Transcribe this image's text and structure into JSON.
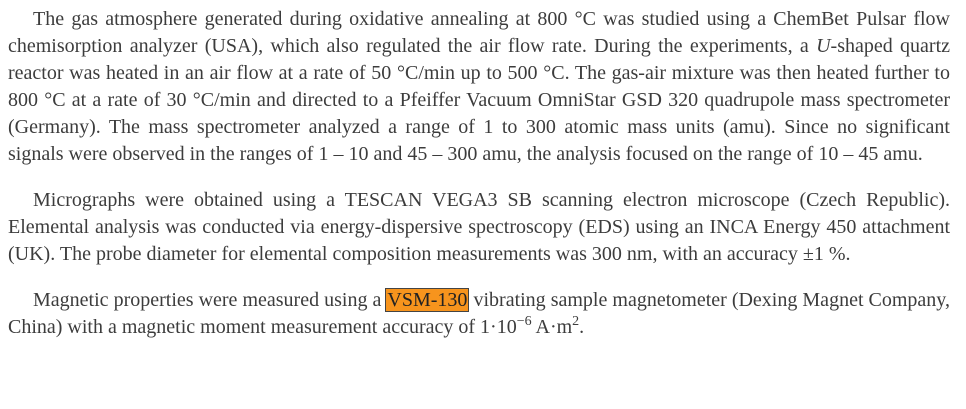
{
  "paragraphs": [
    [
      "The gas atmosphere generated during oxidative annealing at 800 °C was studied using a ChemBet Pulsar flow chemisorption analyzer (USA), which also regulated the air flow rate. During the experiments, a ",
      "U",
      "-shaped quartz reactor was heated in an air flow at a rate of 50 °C/min up to 500 °C. The gas-air mixture was then heated further to 800 °C at a rate of 30 °C/min and directed to a Pfeiffer Vacuum OmniStar GSD 320 quadrupole mass spectrometer (Germany). The mass spectrometer analyzed a range of 1 to 300 atomic mass units (amu). Since no significant signals were observed in the ranges of 1 – 10 and 45 – 300 amu, the analysis focused on the range of 10 – 45 amu."
    ],
    [
      "Micrographs were obtained using a TESCAN VEGA3 SB scanning electron microscope (Czech Republic). Elemental analysis was conducted via energy-dispersive spectroscopy (EDS) using an INCA Energy 450 attachment (UK). The probe diameter for elemental composition measurements was 300 nm, with an accuracy ±1 %."
    ],
    [
      "Magnetic properties were measured using a ",
      "VSM-130",
      " vibrating sample magnetometer (Dexing Magnet Company, China) with a magnetic moment measurement accuracy of 1·10",
      "−6",
      " A·m",
      "2",
      "."
    ]
  ]
}
